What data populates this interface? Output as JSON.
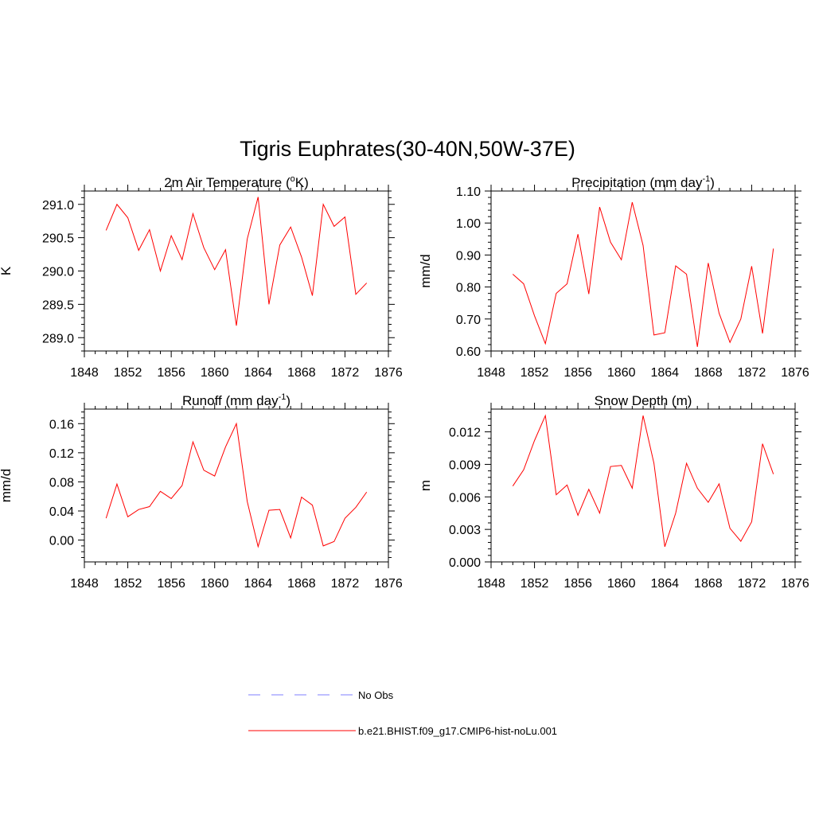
{
  "title": "Tigris Euphrates(30-40N,50W-37E)",
  "colors": {
    "model_line": "#ff0000",
    "obs_line": "#9999ff",
    "axis": "#000000"
  },
  "legend": {
    "items": [
      {
        "label": "No Obs",
        "style": "dashed",
        "color": "#9999ff"
      },
      {
        "label": "b.e21.BHIST.f09_g17.CMIP6-hist-noLu.001",
        "style": "solid",
        "color": "#ff0000"
      }
    ]
  },
  "chart_data": [
    {
      "type": "line",
      "title": "2m Air Temperature (",
      "title_sup": "o",
      "title_after": "K)",
      "ylabel": "K",
      "xlim": [
        1848,
        1876
      ],
      "ylim": [
        288.8,
        291.2
      ],
      "xticks": [
        "1848",
        "1852",
        "1856",
        "1860",
        "1864",
        "1868",
        "1872",
        "1876"
      ],
      "yticks": [
        "289.0",
        "289.5",
        "290.0",
        "290.5",
        "291.0"
      ],
      "series": [
        {
          "x": [
            1850,
            1851,
            1852,
            1853,
            1854,
            1855,
            1856,
            1857,
            1858,
            1859,
            1860,
            1861,
            1862,
            1863,
            1864,
            1865,
            1866,
            1867,
            1868,
            1869,
            1870,
            1871,
            1872,
            1873,
            1874
          ],
          "values": [
            290.61,
            291.0,
            290.8,
            290.31,
            290.62,
            290.0,
            290.53,
            290.17,
            290.86,
            290.35,
            290.02,
            290.32,
            289.18,
            290.48,
            291.11,
            289.5,
            290.39,
            290.66,
            290.21,
            289.63,
            291.0,
            290.67,
            290.81,
            289.65,
            289.82
          ]
        }
      ]
    },
    {
      "type": "line",
      "title": "Precipitation (mm day",
      "title_sup": "-1",
      "title_after": ")",
      "ylabel": "mm/d",
      "xlim": [
        1848,
        1876
      ],
      "ylim": [
        0.6,
        1.1
      ],
      "xticks": [
        "1848",
        "1852",
        "1856",
        "1860",
        "1864",
        "1868",
        "1872",
        "1876"
      ],
      "yticks": [
        "0.60",
        "0.70",
        "0.80",
        "0.90",
        "1.00",
        "1.10"
      ],
      "series": [
        {
          "x": [
            1850,
            1851,
            1852,
            1853,
            1854,
            1855,
            1856,
            1857,
            1858,
            1859,
            1860,
            1861,
            1862,
            1863,
            1864,
            1865,
            1866,
            1867,
            1868,
            1869,
            1870,
            1871,
            1872,
            1873,
            1874
          ],
          "values": [
            0.84,
            0.81,
            0.71,
            0.623,
            0.78,
            0.81,
            0.965,
            0.778,
            1.05,
            0.94,
            0.885,
            1.065,
            0.93,
            0.65,
            0.657,
            0.866,
            0.84,
            0.613,
            0.875,
            0.718,
            0.627,
            0.7,
            0.865,
            0.655,
            0.92
          ]
        }
      ]
    },
    {
      "type": "line",
      "title": "Runoff (mm day",
      "title_sup": "-1",
      "title_after": ")",
      "ylabel": "mm/d",
      "xlim": [
        1848,
        1876
      ],
      "ylim": [
        -0.03,
        0.18
      ],
      "xticks": [
        "1848",
        "1852",
        "1856",
        "1860",
        "1864",
        "1868",
        "1872",
        "1876"
      ],
      "yticks": [
        "0.00",
        "0.04",
        "0.08",
        "0.12",
        "0.16"
      ],
      "series": [
        {
          "x": [
            1850,
            1851,
            1852,
            1853,
            1854,
            1855,
            1856,
            1857,
            1858,
            1859,
            1860,
            1861,
            1862,
            1863,
            1864,
            1865,
            1866,
            1867,
            1868,
            1869,
            1870,
            1871,
            1872,
            1873,
            1874
          ],
          "values": [
            0.03,
            0.077,
            0.032,
            0.042,
            0.046,
            0.067,
            0.057,
            0.075,
            0.135,
            0.096,
            0.088,
            0.128,
            0.16,
            0.053,
            -0.009,
            0.041,
            0.042,
            0.003,
            0.059,
            0.048,
            -0.008,
            -0.002,
            0.03,
            0.045,
            0.066
          ]
        }
      ]
    },
    {
      "type": "line",
      "title": "Snow Depth (m)",
      "title_sup": "",
      "title_after": "",
      "ylabel": "m",
      "xlim": [
        1848,
        1876
      ],
      "ylim": [
        0.0,
        0.0141
      ],
      "xticks": [
        "1848",
        "1852",
        "1856",
        "1860",
        "1864",
        "1868",
        "1872",
        "1876"
      ],
      "yticks": [
        "0.000",
        "0.003",
        "0.006",
        "0.009",
        "0.012"
      ],
      "series": [
        {
          "x": [
            1850,
            1851,
            1852,
            1853,
            1854,
            1855,
            1856,
            1857,
            1858,
            1859,
            1860,
            1861,
            1862,
            1863,
            1864,
            1865,
            1866,
            1867,
            1868,
            1869,
            1870,
            1871,
            1872,
            1873,
            1874
          ],
          "values": [
            0.007,
            0.0085,
            0.0112,
            0.0135,
            0.0062,
            0.0071,
            0.0043,
            0.0067,
            0.0045,
            0.0088,
            0.0089,
            0.0068,
            0.0135,
            0.0091,
            0.0014,
            0.0045,
            0.0091,
            0.0068,
            0.0055,
            0.0072,
            0.0031,
            0.0019,
            0.0037,
            0.0109,
            0.0081
          ]
        }
      ]
    }
  ]
}
